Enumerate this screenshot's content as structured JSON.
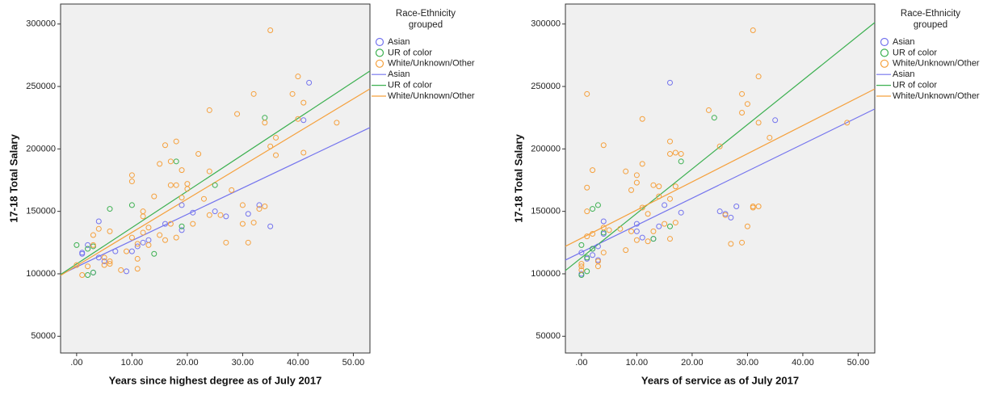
{
  "chart_data": [
    {
      "type": "scatter",
      "x_label": "Years since highest degree as of July 2017",
      "y_label": "17-18 Total Salary",
      "legend_title": "Race-Ethnicity grouped",
      "xlim": [
        -2.9,
        53
      ],
      "ylim": [
        36600,
        316000
      ],
      "xticks": [
        {
          "value": 0,
          "label": ".00"
        },
        {
          "value": 10,
          "label": "10.00"
        },
        {
          "value": 20,
          "label": "20.00"
        },
        {
          "value": 30,
          "label": "30.00"
        },
        {
          "value": 40,
          "label": "40.00"
        },
        {
          "value": 50,
          "label": "50.00"
        }
      ],
      "yticks": [
        50000,
        100000,
        150000,
        200000,
        250000,
        300000
      ],
      "series": [
        {
          "name": "Asian",
          "color": "#7474ee",
          "x": [
            1,
            1,
            2,
            3,
            4,
            4,
            5,
            7,
            9,
            10,
            11,
            12,
            13,
            16,
            19,
            19,
            21,
            25,
            27,
            31,
            33,
            35,
            41,
            42
          ],
          "values": [
            116000,
            117000,
            123000,
            101000,
            142000,
            113000,
            110000,
            118000,
            102000,
            118000,
            122000,
            125000,
            127000,
            140000,
            155000,
            135000,
            149000,
            150000,
            146000,
            148000,
            155000,
            138000,
            223000,
            253000
          ]
        },
        {
          "name": "UR of color",
          "color": "#3cb050",
          "x": [
            0,
            2,
            2,
            3,
            6,
            10,
            14,
            18,
            19,
            25,
            34,
            3
          ],
          "values": [
            123000,
            99000,
            120000,
            101000,
            152000,
            155000,
            116000,
            190000,
            138000,
            171000,
            225000,
            122000
          ]
        },
        {
          "name": "White/Unknown/Other",
          "color": "#f5a03c",
          "x": [
            1,
            2,
            3,
            3,
            4,
            5,
            5,
            6,
            6,
            6,
            8,
            9,
            10,
            10,
            10,
            11,
            11,
            11,
            12,
            12,
            12,
            13,
            13,
            14,
            15,
            15,
            16,
            16,
            17,
            17,
            17,
            18,
            18,
            18,
            19,
            19,
            20,
            20,
            21,
            22,
            23,
            24,
            24,
            24,
            26,
            27,
            28,
            29,
            30,
            30,
            31,
            32,
            32,
            33,
            34,
            34,
            35,
            35,
            36,
            36,
            39,
            40,
            40,
            41,
            41,
            47,
            0
          ],
          "values": [
            99000,
            106000,
            131000,
            123000,
            136000,
            107000,
            113000,
            110000,
            134000,
            108000,
            103000,
            118000,
            179000,
            174000,
            129000,
            104000,
            112000,
            124000,
            146000,
            150000,
            133000,
            123000,
            137000,
            162000,
            188000,
            131000,
            203000,
            127000,
            171000,
            190000,
            140000,
            206000,
            171000,
            129000,
            183000,
            161000,
            172000,
            168000,
            140000,
            196000,
            160000,
            231000,
            182000,
            147000,
            147000,
            125000,
            167000,
            228000,
            155000,
            140000,
            125000,
            244000,
            141000,
            152000,
            221000,
            154000,
            295000,
            202000,
            209000,
            195000,
            244000,
            258000,
            224000,
            237000,
            197000,
            221000,
            107000
          ]
        }
      ],
      "fits": [
        {
          "name": "Asian",
          "color": "#7474ee",
          "x": [
            -2.9,
            53
          ],
          "values": [
            99400,
            217100
          ]
        },
        {
          "name": "UR of color",
          "color": "#3cb050",
          "x": [
            -2.9,
            53
          ],
          "values": [
            99400,
            262400
          ]
        },
        {
          "name": "White/Unknown/Other",
          "color": "#f5a03c",
          "x": [
            -2.9,
            53
          ],
          "values": [
            98700,
            248100
          ]
        }
      ]
    },
    {
      "type": "scatter",
      "x_label": "Years of service as of July 2017",
      "y_label": "17-18 Total Salary",
      "legend_title": "Race-Ethnicity grouped",
      "xlim": [
        -2.9,
        53
      ],
      "ylim": [
        36600,
        316000
      ],
      "xticks": [
        {
          "value": 0,
          "label": ".00"
        },
        {
          "value": 10,
          "label": "10.00"
        },
        {
          "value": 20,
          "label": "20.00"
        },
        {
          "value": 30,
          "label": "30.00"
        },
        {
          "value": 40,
          "label": "40.00"
        },
        {
          "value": 50,
          "label": "50.00"
        }
      ],
      "yticks": [
        50000,
        100000,
        150000,
        200000,
        250000,
        300000
      ],
      "series": [
        {
          "name": "Asian",
          "color": "#7474ee",
          "x": [
            0,
            0,
            1,
            2,
            2,
            3,
            3,
            4,
            4,
            10,
            10,
            11,
            13,
            14,
            15,
            16,
            18,
            25,
            26,
            27,
            28,
            35
          ],
          "values": [
            117000,
            100000,
            112000,
            115000,
            120000,
            122000,
            111000,
            142000,
            132000,
            140000,
            134000,
            129000,
            128000,
            138000,
            155000,
            253000,
            149000,
            150000,
            148000,
            145000,
            154000,
            223000
          ]
        },
        {
          "name": "UR of color",
          "color": "#3cb050",
          "x": [
            0,
            0,
            1,
            2,
            2,
            3,
            4,
            13,
            16,
            18,
            24,
            1
          ],
          "values": [
            99000,
            123000,
            113000,
            120000,
            152000,
            155000,
            133000,
            128000,
            138000,
            190000,
            225000,
            102000
          ]
        },
        {
          "name": "White/Unknown/Other",
          "color": "#f5a03c",
          "x": [
            0,
            0,
            0,
            1,
            1,
            1,
            1,
            2,
            2,
            3,
            3,
            4,
            4,
            4,
            5,
            7,
            8,
            8,
            9,
            9,
            10,
            10,
            10,
            11,
            11,
            11,
            12,
            12,
            13,
            13,
            14,
            14,
            15,
            16,
            16,
            16,
            16,
            17,
            17,
            17,
            18,
            23,
            25,
            26,
            27,
            29,
            29,
            29,
            30,
            30,
            31,
            31,
            31,
            32,
            32,
            32,
            34,
            48
          ],
          "values": [
            106000,
            103000,
            108000,
            244000,
            169000,
            150000,
            130000,
            183000,
            132000,
            106000,
            110000,
            203000,
            117000,
            137000,
            135000,
            136000,
            182000,
            119000,
            167000,
            134000,
            179000,
            173000,
            127000,
            224000,
            188000,
            153000,
            126000,
            148000,
            171000,
            134000,
            162000,
            170000,
            140000,
            206000,
            196000,
            128000,
            160000,
            197000,
            170000,
            141000,
            196000,
            231000,
            202000,
            147000,
            124000,
            229000,
            244000,
            125000,
            236000,
            138000,
            295000,
            154000,
            153000,
            258000,
            221000,
            154000,
            209000,
            221000
          ]
        }
      ],
      "fits": [
        {
          "name": "Asian",
          "color": "#7474ee",
          "x": [
            -2.9,
            53
          ],
          "values": [
            111000,
            232000
          ]
        },
        {
          "name": "UR of color",
          "color": "#3cb050",
          "x": [
            -2.9,
            53
          ],
          "values": [
            102600,
            301200
          ]
        },
        {
          "name": "White/Unknown/Other",
          "color": "#f5a03c",
          "x": [
            -2.9,
            53
          ],
          "values": [
            122000,
            248000
          ]
        }
      ]
    }
  ]
}
